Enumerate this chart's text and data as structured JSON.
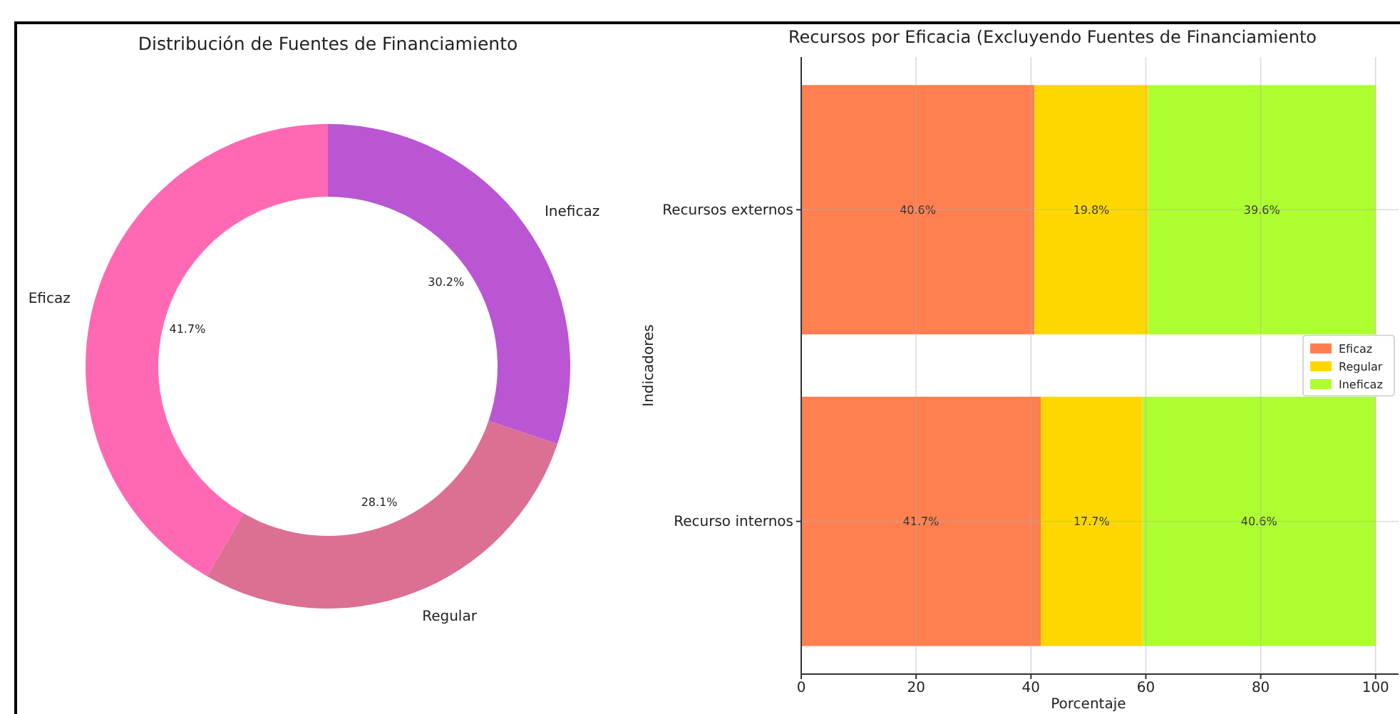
{
  "chart_data": [
    {
      "type": "donut",
      "title": "Distribución de Fuentes de Financiamiento",
      "categories": [
        "Eficaz",
        "Regular",
        "Ineficaz"
      ],
      "values": [
        41.7,
        28.1,
        30.2
      ],
      "colors": [
        "#ff69b4",
        "#db7093",
        "#ba55d3"
      ],
      "value_labels": [
        "41.7%",
        "28.1%",
        "30.2%"
      ]
    },
    {
      "type": "bar",
      "orientation": "horizontal",
      "stacked": true,
      "title": "Recursos por Eficacia (Excluyendo Fuentes de Financiamiento",
      "xlabel": "Porcentaje",
      "ylabel": "Indicadores",
      "categories": [
        "Recursos externos",
        "Recurso internos"
      ],
      "series": [
        {
          "name": "Eficaz",
          "color": "#ff7f50",
          "values": [
            40.6,
            41.7
          ],
          "value_labels": [
            "40.6%",
            "41.7%"
          ]
        },
        {
          "name": "Regular",
          "color": "#ffd700",
          "values": [
            19.8,
            17.7
          ],
          "value_labels": [
            "19.8%",
            "17.7%"
          ]
        },
        {
          "name": "Ineficaz",
          "color": "#adff2f",
          "values": [
            39.6,
            40.6
          ],
          "value_labels": [
            "39.6%",
            "40.6%"
          ]
        }
      ],
      "xlim": [
        0,
        104
      ],
      "xticks": [
        0,
        20,
        40,
        60,
        80,
        100
      ],
      "grid": true,
      "legend": "right"
    }
  ]
}
